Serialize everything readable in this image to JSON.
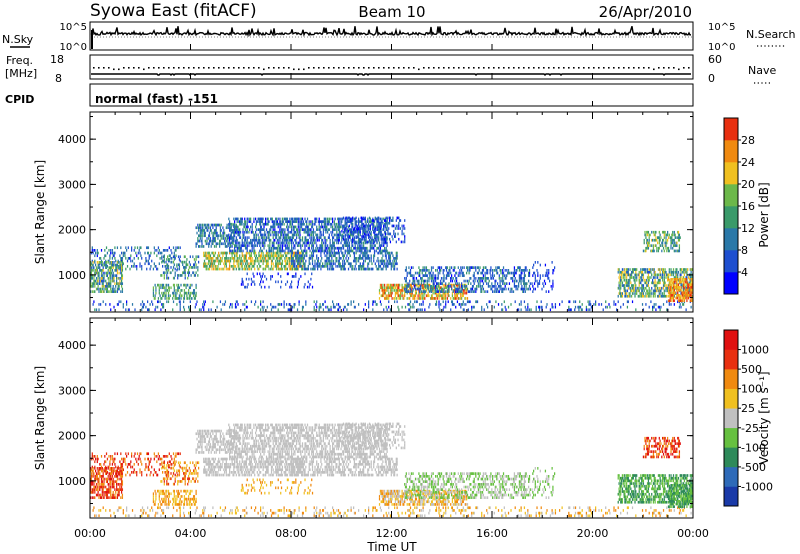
{
  "header": {
    "station": "Syowa East (fitACF)",
    "beam": "Beam 10",
    "date": "26/Apr/2010"
  },
  "top_panels": {
    "nsky": {
      "label": "N.Sky",
      "ticks": [
        "10^5",
        "10^0"
      ]
    },
    "nsearch": {
      "label": "N.Search",
      "ticks": [
        "10^5",
        "10^0"
      ]
    },
    "freq": {
      "label": "Freq.",
      "unit": "[MHz]",
      "ticks": [
        "18",
        "8"
      ]
    },
    "nave": {
      "label": "Nave",
      "ticks": [
        "60",
        "0"
      ]
    },
    "cpid": {
      "label": "CPID",
      "value": "normal (fast) -151"
    }
  },
  "chart_data": [
    {
      "type": "heatmap",
      "name": "power",
      "ylabel": "Slant Range [km]",
      "y_ticks": [
        "4000",
        "3000",
        "2000",
        "1000"
      ],
      "y_tick_values": [
        4000,
        3000,
        2000,
        1000
      ],
      "ylim": [
        180,
        4600
      ],
      "xlim": [
        0,
        24
      ],
      "colorbar": {
        "label": "Power [dB]",
        "ticks": [
          "28",
          "24",
          "20",
          "16",
          "12",
          "8",
          "4"
        ],
        "tick_values": [
          28,
          24,
          20,
          16,
          12,
          8,
          4
        ],
        "range": [
          0,
          32
        ],
        "colors": [
          "#0000ff",
          "#1e4fd0",
          "#2a78a8",
          "#3a9a6a",
          "#6cb84a",
          "#f0c020",
          "#f08a10",
          "#e83010"
        ]
      }
    },
    {
      "type": "heatmap",
      "name": "velocity",
      "ylabel": "Slant Range [km]",
      "y_ticks": [
        "4000",
        "3000",
        "2000",
        "1000"
      ],
      "y_tick_values": [
        4000,
        3000,
        2000,
        1000
      ],
      "ylim": [
        180,
        4600
      ],
      "xlim": [
        0,
        24
      ],
      "colorbar": {
        "label": "Velocity [m s⁻¹]",
        "ticks": [
          "1000",
          "500",
          "100",
          "25",
          "-25",
          "-100",
          "-500",
          "-1000"
        ],
        "colors": [
          "#1a3aa8",
          "#2e6ab8",
          "#2e8a5a",
          "#66c040",
          "#c0c0c0",
          "#f0c020",
          "#f08a10",
          "#e83010",
          "#e01010"
        ]
      }
    }
  ],
  "x_axis": {
    "label": "Time UT",
    "ticks": [
      "00:00",
      "04:00",
      "08:00",
      "12:00",
      "16:00",
      "20:00",
      "00:00"
    ],
    "tick_values": [
      0,
      4,
      8,
      12,
      16,
      20,
      24
    ]
  }
}
